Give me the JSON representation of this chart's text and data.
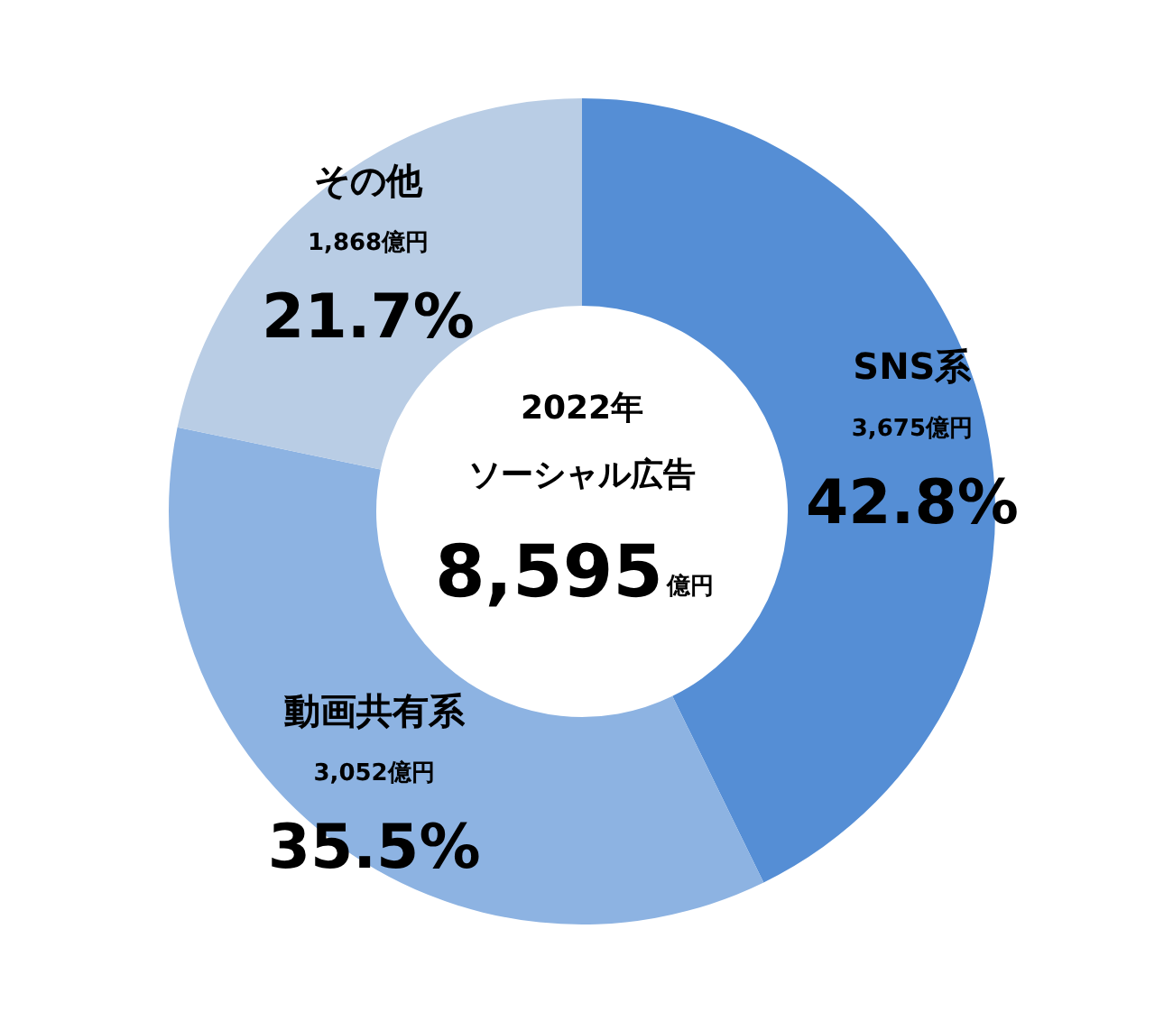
{
  "chart_data": {
    "type": "donut",
    "title": "2022年",
    "subtitle": "ソーシャル広告",
    "categories": [
      "SNS系",
      "動画共有系",
      "その他"
    ],
    "values": [
      3675,
      3052,
      1868
    ],
    "colors": [
      "#558ed5",
      "#8db3e2",
      "#b9cde5"
    ],
    "value_labels": [
      "3,675億円",
      "3,052億円",
      "1,868億円"
    ],
    "annotations": [
      {
        "text": "42.8%",
        "x": "SNS系"
      },
      {
        "text": "35.5%",
        "x": "動画共有系"
      },
      {
        "text": "21.7%",
        "x": "その他"
      },
      "8,595",
      "億円"
    ]
  }
}
